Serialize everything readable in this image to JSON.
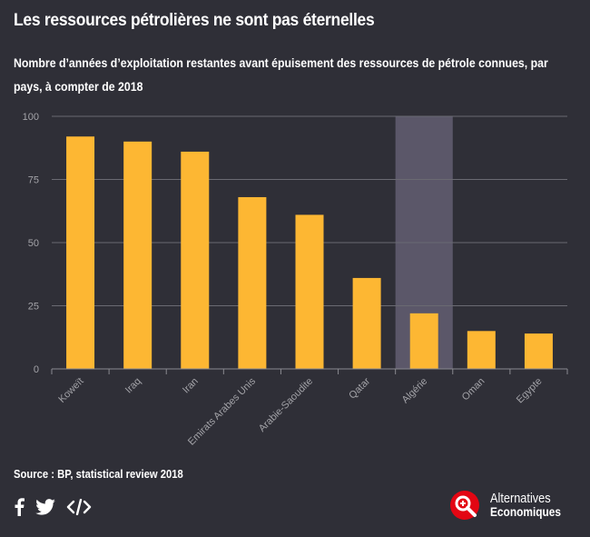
{
  "header": {
    "title": "Les ressources pétrolières ne sont pas éternelles",
    "subtitle": "Nombre d’années d’exploitation restantes avant épuisement des ressources de pétrole connues, par pays, à compter de 2018"
  },
  "chart_data": {
    "type": "bar",
    "categories": [
      "Koweït",
      "Iraq",
      "Iran",
      "Emirats Arabes Unis",
      "Arabie-Saoudite",
      "Qatar",
      "Algérie",
      "Oman",
      "Egypte"
    ],
    "values": [
      92,
      90,
      86,
      68,
      61,
      36,
      22,
      15,
      14
    ],
    "highlight": "Algérie",
    "ylim": [
      0,
      100
    ],
    "yticks": [
      "0",
      "25",
      "50",
      "75",
      "100"
    ],
    "grid": true,
    "colors": {
      "bar": "#fdb733",
      "highlight_band": "#5b5769",
      "grid": "#6a6a72",
      "tick_label": "#a3a3a8"
    }
  },
  "footer": {
    "source": "Source : BP, statistical review 2018",
    "social_icons": [
      "facebook-icon",
      "twitter-icon",
      "embed-code-icon"
    ],
    "brand_line1": "Alternatives",
    "brand_line2": "Economiques",
    "brand_color": "#e30613"
  }
}
